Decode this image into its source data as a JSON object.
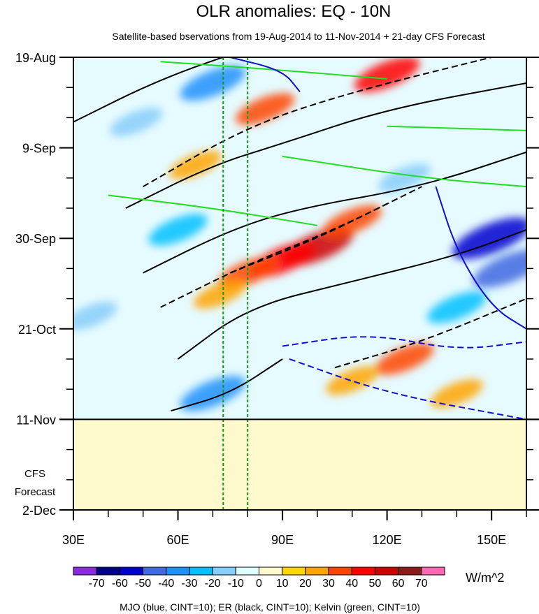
{
  "chart_data": {
    "type": "heatmap",
    "title": "OLR anomalies: EQ - 10N",
    "subtitle": "Satellite-based bservations from 19-Aug-2014 to 11-Nov-2014 + 21-day CFS Forecast",
    "x_axis": {
      "range": [
        30,
        160
      ],
      "ticks": [
        {
          "value": 30,
          "label": "30E"
        },
        {
          "value": 60,
          "label": "60E"
        },
        {
          "value": 90,
          "label": "90E"
        },
        {
          "value": 120,
          "label": "120E"
        },
        {
          "value": 150,
          "label": "150E"
        }
      ]
    },
    "y_axis": {
      "range_days": [
        0,
        105
      ],
      "ticks": [
        {
          "day": 0,
          "label": "19-Aug"
        },
        {
          "day": 21,
          "label": "9-Sep"
        },
        {
          "day": 42,
          "label": "30-Sep"
        },
        {
          "day": 63,
          "label": "21-Oct"
        },
        {
          "day": 84,
          "label": "11-Nov"
        },
        {
          "day": 105,
          "label": "2-Dec"
        }
      ]
    },
    "forecast_label_line1": "CFS",
    "forecast_label_line2": "Forecast",
    "forecast_start_day": 84,
    "colorbar": {
      "unit": "W/m^2",
      "levels": [
        -70,
        -60,
        -50,
        -40,
        -30,
        -20,
        -10,
        0,
        10,
        20,
        30,
        40,
        50,
        60,
        70
      ],
      "colors": [
        "#8a2be2",
        "#00008b",
        "#0000cd",
        "#4169e1",
        "#1e90ff",
        "#00bfff",
        "#87cefa",
        "#e0ffff",
        "#fffacd",
        "#ffd700",
        "#ffa500",
        "#ff4500",
        "#ff0000",
        "#cd0000",
        "#8b1a1a",
        "#ff69b4"
      ]
    },
    "anomaly_blobs": [
      {
        "lon": 100,
        "day": 44,
        "value": 50
      },
      {
        "lon": 90,
        "day": 47,
        "value": 40
      },
      {
        "lon": 80,
        "day": 50,
        "value": 30
      },
      {
        "lon": 110,
        "day": 38,
        "value": 30
      },
      {
        "lon": 72,
        "day": 55,
        "value": 20
      },
      {
        "lon": 65,
        "day": 25,
        "value": 20
      },
      {
        "lon": 85,
        "day": 12,
        "value": 30
      },
      {
        "lon": 120,
        "day": 4,
        "value": 40
      },
      {
        "lon": 125,
        "day": 70,
        "value": 30
      },
      {
        "lon": 110,
        "day": 75,
        "value": 20
      },
      {
        "lon": 140,
        "day": 78,
        "value": 20
      },
      {
        "lon": 70,
        "day": 6,
        "value": -40
      },
      {
        "lon": 150,
        "day": 42,
        "value": -60
      },
      {
        "lon": 155,
        "day": 49,
        "value": -50
      },
      {
        "lon": 60,
        "day": 40,
        "value": -30
      },
      {
        "lon": 70,
        "day": 78,
        "value": -40
      },
      {
        "lon": 48,
        "day": 15,
        "value": -20
      },
      {
        "lon": 125,
        "day": 28,
        "value": -20
      },
      {
        "lon": 140,
        "day": 58,
        "value": -30
      },
      {
        "lon": 35,
        "day": 60,
        "value": -20
      }
    ],
    "contours": [
      {
        "name": "ER positive",
        "color": "black",
        "dash": false,
        "points": [
          [
            30,
            15
          ],
          [
            55,
            5
          ],
          [
            80,
            -2
          ]
        ]
      },
      {
        "name": "ER positive",
        "color": "black",
        "dash": false,
        "points": [
          [
            45,
            35
          ],
          [
            70,
            25
          ],
          [
            90,
            20
          ],
          [
            120,
            12
          ],
          [
            160,
            6
          ]
        ]
      },
      {
        "name": "ER positive",
        "color": "black",
        "dash": false,
        "points": [
          [
            50,
            50
          ],
          [
            75,
            40
          ],
          [
            95,
            35
          ],
          [
            130,
            30
          ],
          [
            160,
            22
          ]
        ]
      },
      {
        "name": "ER positive",
        "color": "black",
        "dash": false,
        "points": [
          [
            60,
            70
          ],
          [
            80,
            58
          ],
          [
            110,
            52
          ],
          [
            140,
            46
          ],
          [
            160,
            40
          ]
        ]
      },
      {
        "name": "ER positive",
        "color": "black",
        "dash": false,
        "points": [
          [
            58,
            82
          ],
          [
            75,
            78
          ],
          [
            90,
            70
          ]
        ]
      },
      {
        "name": "ER negative",
        "color": "black",
        "dash": true,
        "points": [
          [
            50,
            30
          ],
          [
            80,
            16
          ],
          [
            110,
            8
          ],
          [
            150,
            0
          ]
        ]
      },
      {
        "name": "ER negative",
        "color": "black",
        "dash": true,
        "points": [
          [
            55,
            58
          ],
          [
            80,
            48
          ],
          [
            105,
            40
          ],
          [
            130,
            30
          ]
        ]
      },
      {
        "name": "ER negative",
        "color": "black",
        "dash": true,
        "points": [
          [
            75,
            50
          ],
          [
            100,
            42
          ],
          [
            120,
            34
          ]
        ]
      },
      {
        "name": "ER negative",
        "color": "black",
        "dash": true,
        "points": [
          [
            105,
            72
          ],
          [
            130,
            66
          ],
          [
            160,
            56
          ]
        ]
      },
      {
        "name": "Kelvin",
        "color": "green",
        "dash": false,
        "points": [
          [
            55,
            1
          ],
          [
            90,
            3
          ],
          [
            120,
            5
          ]
        ]
      },
      {
        "name": "Kelvin",
        "color": "green",
        "dash": false,
        "points": [
          [
            40,
            32
          ],
          [
            70,
            35
          ],
          [
            100,
            39
          ]
        ]
      },
      {
        "name": "Kelvin",
        "color": "green",
        "dash": false,
        "points": [
          [
            90,
            23
          ],
          [
            130,
            28
          ],
          [
            160,
            30
          ]
        ]
      },
      {
        "name": "Kelvin",
        "color": "green",
        "dash": false,
        "points": [
          [
            120,
            16
          ],
          [
            160,
            17
          ]
        ]
      },
      {
        "name": "MJO",
        "color": "blue",
        "dash": false,
        "points": [
          [
            75,
            0
          ],
          [
            90,
            3
          ],
          [
            95,
            8
          ]
        ]
      },
      {
        "name": "MJO",
        "color": "blue",
        "dash": false,
        "points": [
          [
            134,
            30
          ],
          [
            140,
            45
          ],
          [
            150,
            58
          ],
          [
            160,
            63
          ]
        ]
      },
      {
        "name": "MJO",
        "color": "blue",
        "dash": true,
        "points": [
          [
            90,
            67
          ],
          [
            115,
            64
          ],
          [
            140,
            68
          ],
          [
            160,
            66
          ]
        ]
      },
      {
        "name": "MJO",
        "color": "blue",
        "dash": true,
        "points": [
          [
            92,
            70
          ],
          [
            120,
            78
          ],
          [
            160,
            84
          ]
        ]
      }
    ],
    "reference_lines_lon": [
      73,
      80
    ],
    "footer": "MJO (blue, CINT=10); ER (black, CINT=10); Kelvin (green, CINT=10)"
  }
}
